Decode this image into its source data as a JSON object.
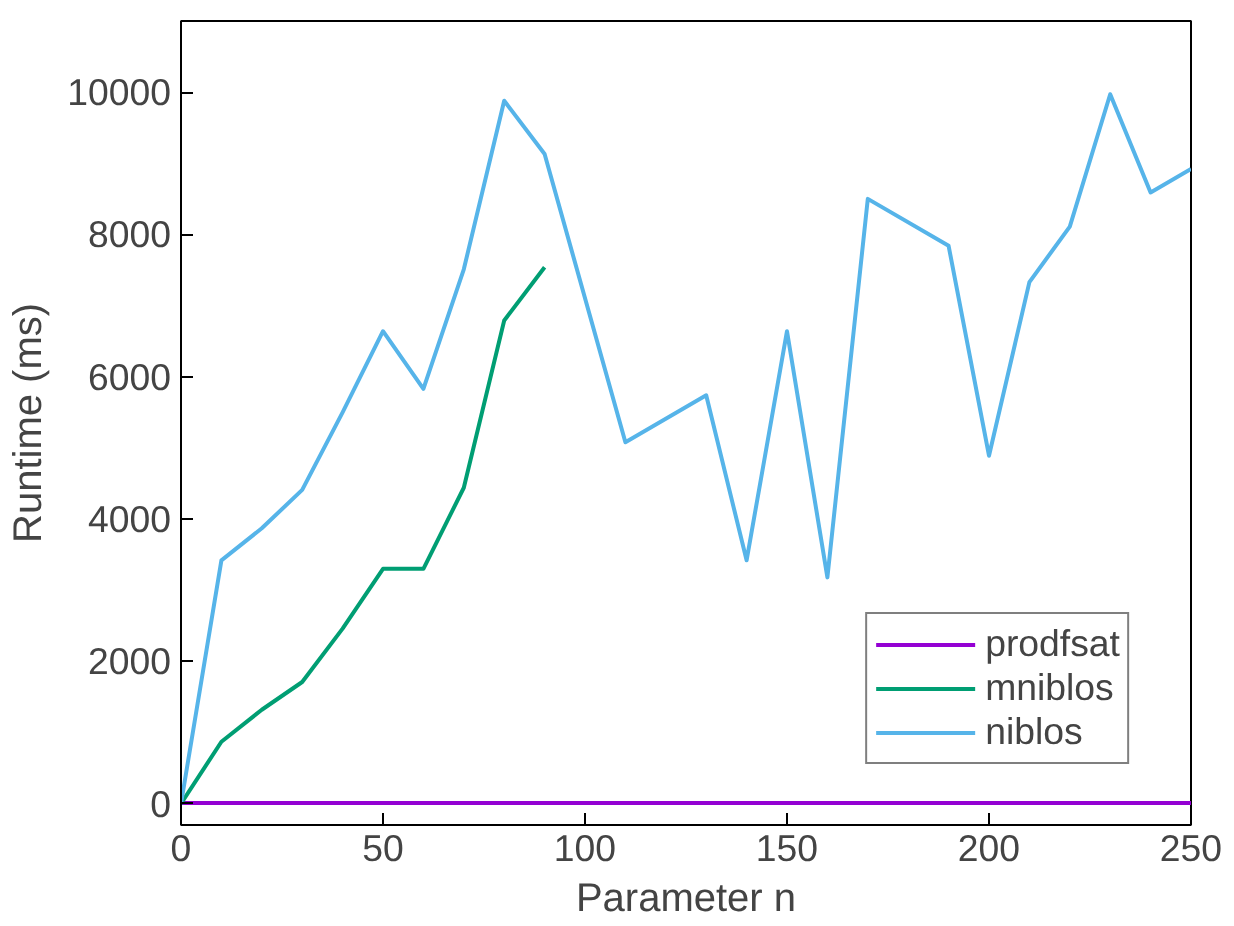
{
  "chart_data": {
    "type": "line",
    "xlabel": "Parameter n",
    "ylabel": "Runtime (ms)",
    "xlim": [
      0,
      250
    ],
    "ylim": [
      -300,
      11000
    ],
    "xticks": [
      0,
      50,
      100,
      150,
      200,
      250
    ],
    "yticks": [
      0,
      2000,
      4000,
      6000,
      8000,
      10000
    ],
    "grid": false,
    "legend": "bottom right",
    "marker": "none",
    "line_style": "solid",
    "series": [
      {
        "name": "prodfsat",
        "color": "#9400d3",
        "x": [
          0,
          50,
          100,
          150,
          200,
          250
        ],
        "values": [
          10,
          10,
          10,
          10,
          10,
          10
        ]
      },
      {
        "name": "mniblos",
        "color": "#009e73",
        "x": [
          0,
          10,
          20,
          30,
          40,
          50,
          60,
          70,
          80,
          90
        ],
        "values": [
          0,
          870,
          1320,
          1710,
          2460,
          3300,
          3300,
          4440,
          6790,
          7540
        ]
      },
      {
        "name": "niblos",
        "color": "#56b4e9",
        "x": [
          0,
          10,
          20,
          30,
          40,
          50,
          60,
          70,
          80,
          90,
          110,
          130,
          140,
          150,
          160,
          170,
          190,
          200,
          210,
          220,
          230,
          240,
          250
        ],
        "values": [
          0,
          3420,
          3870,
          4410,
          5500,
          6640,
          5830,
          7510,
          9880,
          9130,
          5080,
          5740,
          3420,
          6640,
          3180,
          8500,
          7840,
          4890,
          7330,
          8110,
          9970,
          8590,
          8920
        ]
      }
    ]
  }
}
